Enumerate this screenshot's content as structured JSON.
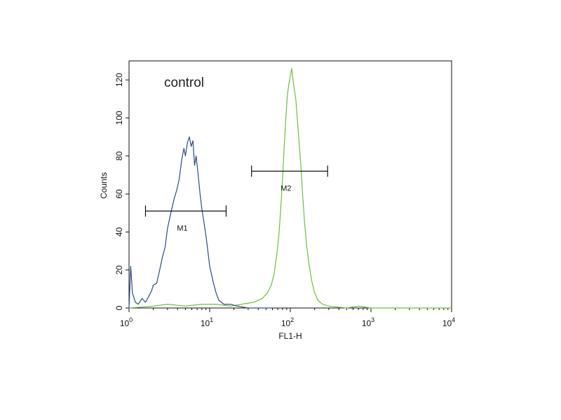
{
  "chart_data": {
    "type": "histogram",
    "xlabel": "FL1-H",
    "ylabel": "Counts",
    "annotation": "control",
    "xscale": "log",
    "xlim": [
      1,
      10000
    ],
    "ylim": [
      0,
      130
    ],
    "x_ticks": [
      {
        "base": "10",
        "exp": "0",
        "value": 1
      },
      {
        "base": "10",
        "exp": "1",
        "value": 10
      },
      {
        "base": "10",
        "exp": "2",
        "value": 100
      },
      {
        "base": "10",
        "exp": "3",
        "value": 1000
      },
      {
        "base": "10",
        "exp": "4",
        "value": 10000
      }
    ],
    "y_ticks": [
      "0",
      "20",
      "40",
      "60",
      "80",
      "100",
      "120"
    ],
    "grid": false,
    "series": [
      {
        "color": "#2e4a8c",
        "points": [
          [
            1.0,
            0
          ],
          [
            1.05,
            22
          ],
          [
            1.1,
            8
          ],
          [
            1.2,
            3
          ],
          [
            1.3,
            2
          ],
          [
            1.45,
            5
          ],
          [
            1.6,
            3
          ],
          [
            1.75,
            6
          ],
          [
            1.9,
            9
          ],
          [
            2.0,
            12
          ],
          [
            2.2,
            13
          ],
          [
            2.4,
            20
          ],
          [
            2.6,
            27
          ],
          [
            2.8,
            32
          ],
          [
            3.0,
            42
          ],
          [
            3.3,
            50
          ],
          [
            3.6,
            57
          ],
          [
            3.9,
            62
          ],
          [
            4.2,
            68
          ],
          [
            4.5,
            78
          ],
          [
            4.8,
            84
          ],
          [
            5.0,
            80
          ],
          [
            5.3,
            87
          ],
          [
            5.6,
            90
          ],
          [
            5.9,
            85
          ],
          [
            6.2,
            88
          ],
          [
            6.5,
            75
          ],
          [
            6.8,
            80
          ],
          [
            7.2,
            70
          ],
          [
            7.6,
            60
          ],
          [
            8.0,
            52
          ],
          [
            8.5,
            45
          ],
          [
            9.0,
            38
          ],
          [
            9.5,
            30
          ],
          [
            10.0,
            22
          ],
          [
            11.0,
            14
          ],
          [
            12.0,
            8
          ],
          [
            13.0,
            4
          ],
          [
            15.0,
            2
          ],
          [
            18.0,
            2
          ],
          [
            22.0,
            1
          ],
          [
            30.0,
            0
          ],
          [
            60.0,
            0
          ]
        ]
      },
      {
        "color": "#6fbe3c",
        "points": [
          [
            1.0,
            0
          ],
          [
            2.0,
            1
          ],
          [
            3.0,
            2
          ],
          [
            5.0,
            1
          ],
          [
            8.0,
            2
          ],
          [
            12.0,
            2
          ],
          [
            18.0,
            1
          ],
          [
            25.0,
            2
          ],
          [
            35.0,
            3
          ],
          [
            45.0,
            5
          ],
          [
            52.0,
            8
          ],
          [
            58.0,
            12
          ],
          [
            63.0,
            18
          ],
          [
            68.0,
            28
          ],
          [
            72.0,
            38
          ],
          [
            76.0,
            52
          ],
          [
            80.0,
            68
          ],
          [
            84.0,
            85
          ],
          [
            88.0,
            100
          ],
          [
            92.0,
            112
          ],
          [
            96.0,
            118
          ],
          [
            100.0,
            122
          ],
          [
            104.0,
            126
          ],
          [
            108.0,
            120
          ],
          [
            112.0,
            115
          ],
          [
            117.0,
            110
          ],
          [
            122.0,
            100
          ],
          [
            128.0,
            88
          ],
          [
            135.0,
            75
          ],
          [
            142.0,
            60
          ],
          [
            150.0,
            45
          ],
          [
            160.0,
            32
          ],
          [
            172.0,
            22
          ],
          [
            185.0,
            14
          ],
          [
            200.0,
            8
          ],
          [
            220.0,
            4
          ],
          [
            250.0,
            2
          ],
          [
            300.0,
            1
          ],
          [
            500.0,
            0
          ],
          [
            700.0,
            1
          ],
          [
            1000.0,
            0
          ],
          [
            10000.0,
            0
          ]
        ]
      }
    ],
    "gates": [
      {
        "label": "M1",
        "x_start": 1.6,
        "x_end": 16,
        "y": 51
      },
      {
        "label": "M2",
        "x_start": 33,
        "x_end": 290,
        "y": 72
      }
    ]
  }
}
